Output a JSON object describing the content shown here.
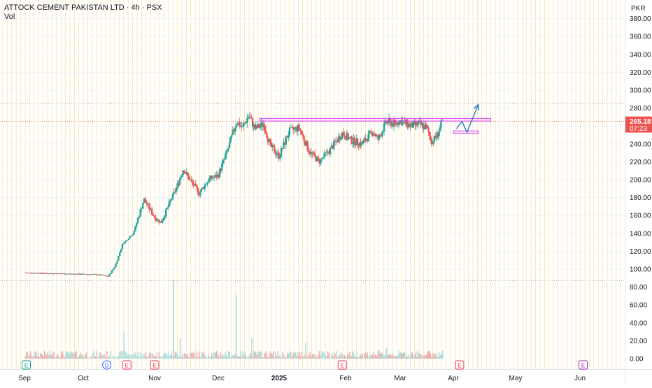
{
  "header": {
    "symbol_line": "ATTOCK CEMENT PAKISTAN LTD · 4h · PSX",
    "volume_label": "Vol"
  },
  "colors": {
    "up": "#26a69a",
    "down": "#ef5350",
    "grid_v": "#f7e3a6",
    "grid_h": "#f0f3fa",
    "axis_text": "#131722",
    "price_tag": "#ef5350",
    "zone": "#e040fb",
    "arrow": "#2b7bb9"
  },
  "chart_data": {
    "type": "candlestick",
    "price_axis": {
      "unit": "PKR",
      "ticks": [
        "380.00",
        "360.00",
        "340.00",
        "320.00",
        "300.00",
        "280.00",
        "260.00",
        "240.00",
        "220.00",
        "200.00",
        "180.00",
        "160.00",
        "140.00",
        "120.00",
        "100.00",
        "80.00"
      ],
      "range": [
        72,
        388
      ]
    },
    "volume_axis": {
      "ticks": [
        "60.00",
        "40.00",
        "20.00",
        "0.00"
      ]
    },
    "time_axis": {
      "labels": [
        {
          "label": "Sep",
          "t": 0.0
        },
        {
          "label": "Oct",
          "t": 1.0
        },
        {
          "label": "Nov",
          "t": 2.0
        },
        {
          "label": "Dec",
          "t": 3.0
        },
        {
          "label": "2025",
          "t": 4.0
        },
        {
          "label": "Feb",
          "t": 5.0
        },
        {
          "label": "Mar",
          "t": 6.0
        },
        {
          "label": "Apr",
          "t": 7.0
        },
        {
          "label": "May",
          "t": 8.0
        },
        {
          "label": "Jun",
          "t": 9.0
        }
      ]
    },
    "last_price": {
      "value": "265.18",
      "countdown": "07:23",
      "level": 265.18
    },
    "reference_lines": [
      285.5,
      87
    ],
    "event_markers": [
      {
        "label": "E",
        "t": 0.03
      },
      {
        "label": "D",
        "t": 1.33
      },
      {
        "label": "E",
        "t": 1.61
      },
      {
        "label": "E",
        "t": 2.0
      },
      {
        "label": "E",
        "t": 4.95
      },
      {
        "label": "E",
        "t": 7.1
      },
      {
        "label": "E",
        "t": 9.05
      }
    ],
    "resistance_zone": {
      "t_start": 3.68,
      "t_end": 7.6,
      "low": 265.5,
      "high": 268.5
    },
    "support_zone": {
      "t_start": 7.0,
      "t_end": 7.4,
      "low": 251.5,
      "high": 254.5
    },
    "projection_path": [
      {
        "t": 7.05,
        "p": 257
      },
      {
        "t": 7.14,
        "p": 265
      },
      {
        "t": 7.22,
        "p": 253
      },
      {
        "t": 7.4,
        "p": 284
      }
    ],
    "price_path": [
      {
        "t": 0.0,
        "p": 96
      },
      {
        "t": 1.2,
        "p": 94
      },
      {
        "t": 1.35,
        "p": 92
      },
      {
        "t": 1.45,
        "p": 104
      },
      {
        "t": 1.55,
        "p": 128
      },
      {
        "t": 1.7,
        "p": 140
      },
      {
        "t": 1.85,
        "p": 178
      },
      {
        "t": 2.0,
        "p": 158
      },
      {
        "t": 2.1,
        "p": 152
      },
      {
        "t": 2.2,
        "p": 168
      },
      {
        "t": 2.35,
        "p": 192
      },
      {
        "t": 2.45,
        "p": 212
      },
      {
        "t": 2.55,
        "p": 200
      },
      {
        "t": 2.7,
        "p": 185
      },
      {
        "t": 2.85,
        "p": 200
      },
      {
        "t": 3.0,
        "p": 205
      },
      {
        "t": 3.15,
        "p": 232
      },
      {
        "t": 3.3,
        "p": 265
      },
      {
        "t": 3.4,
        "p": 258
      },
      {
        "t": 3.5,
        "p": 272
      },
      {
        "t": 3.6,
        "p": 257
      },
      {
        "t": 3.75,
        "p": 262
      },
      {
        "t": 3.85,
        "p": 238
      },
      {
        "t": 4.0,
        "p": 226
      },
      {
        "t": 4.15,
        "p": 254
      },
      {
        "t": 4.3,
        "p": 258
      },
      {
        "t": 4.45,
        "p": 232
      },
      {
        "t": 4.6,
        "p": 220
      },
      {
        "t": 4.75,
        "p": 232
      },
      {
        "t": 4.95,
        "p": 252
      },
      {
        "t": 5.1,
        "p": 244
      },
      {
        "t": 5.3,
        "p": 240
      },
      {
        "t": 5.5,
        "p": 254
      },
      {
        "t": 5.6,
        "p": 245
      },
      {
        "t": 5.75,
        "p": 265
      },
      {
        "t": 5.9,
        "p": 262
      },
      {
        "t": 6.0,
        "p": 266
      },
      {
        "t": 6.2,
        "p": 260
      },
      {
        "t": 6.35,
        "p": 262
      },
      {
        "t": 6.5,
        "p": 258
      },
      {
        "t": 6.6,
        "p": 242
      },
      {
        "t": 6.7,
        "p": 250
      },
      {
        "t": 6.8,
        "p": 266
      }
    ],
    "volume_spikes": [
      {
        "t": 1.57,
        "v": 30
      },
      {
        "t": 2.3,
        "v": 88
      },
      {
        "t": 2.4,
        "v": 22
      },
      {
        "t": 3.3,
        "v": 71
      },
      {
        "t": 3.55,
        "v": 23
      },
      {
        "t": 4.4,
        "v": 18
      },
      {
        "t": 5.75,
        "v": 12
      },
      {
        "t": 6.8,
        "v": 9
      }
    ],
    "grid": true
  }
}
